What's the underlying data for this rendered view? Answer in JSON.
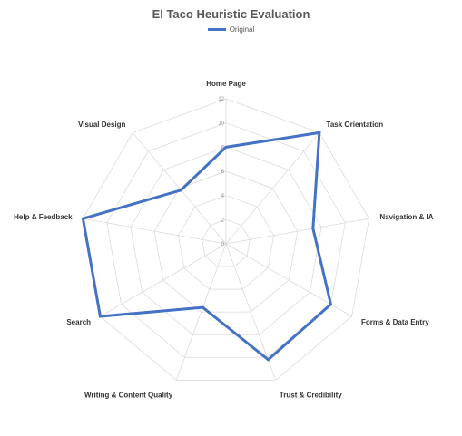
{
  "chart_data": {
    "type": "radar",
    "title": "El Taco Heuristic Evaluation",
    "categories": [
      "Home Page",
      "Task Orientation",
      "Navigation & IA",
      "Forms & Data Entry",
      "Trust & Credibility",
      "Writing & Content Quality",
      "Search",
      "Help & Feedback",
      "Visual Design"
    ],
    "series": [
      {
        "name": "Original",
        "values": [
          8,
          12,
          7.3,
          10,
          10.2,
          5.6,
          12,
          12,
          5.8
        ],
        "color": "#4472c4"
      }
    ],
    "rlim": [
      0,
      12
    ],
    "ticks": [
      "0",
      "2",
      "4",
      "6",
      "8",
      "10",
      "12"
    ],
    "grid": true,
    "legend": "top-center"
  }
}
